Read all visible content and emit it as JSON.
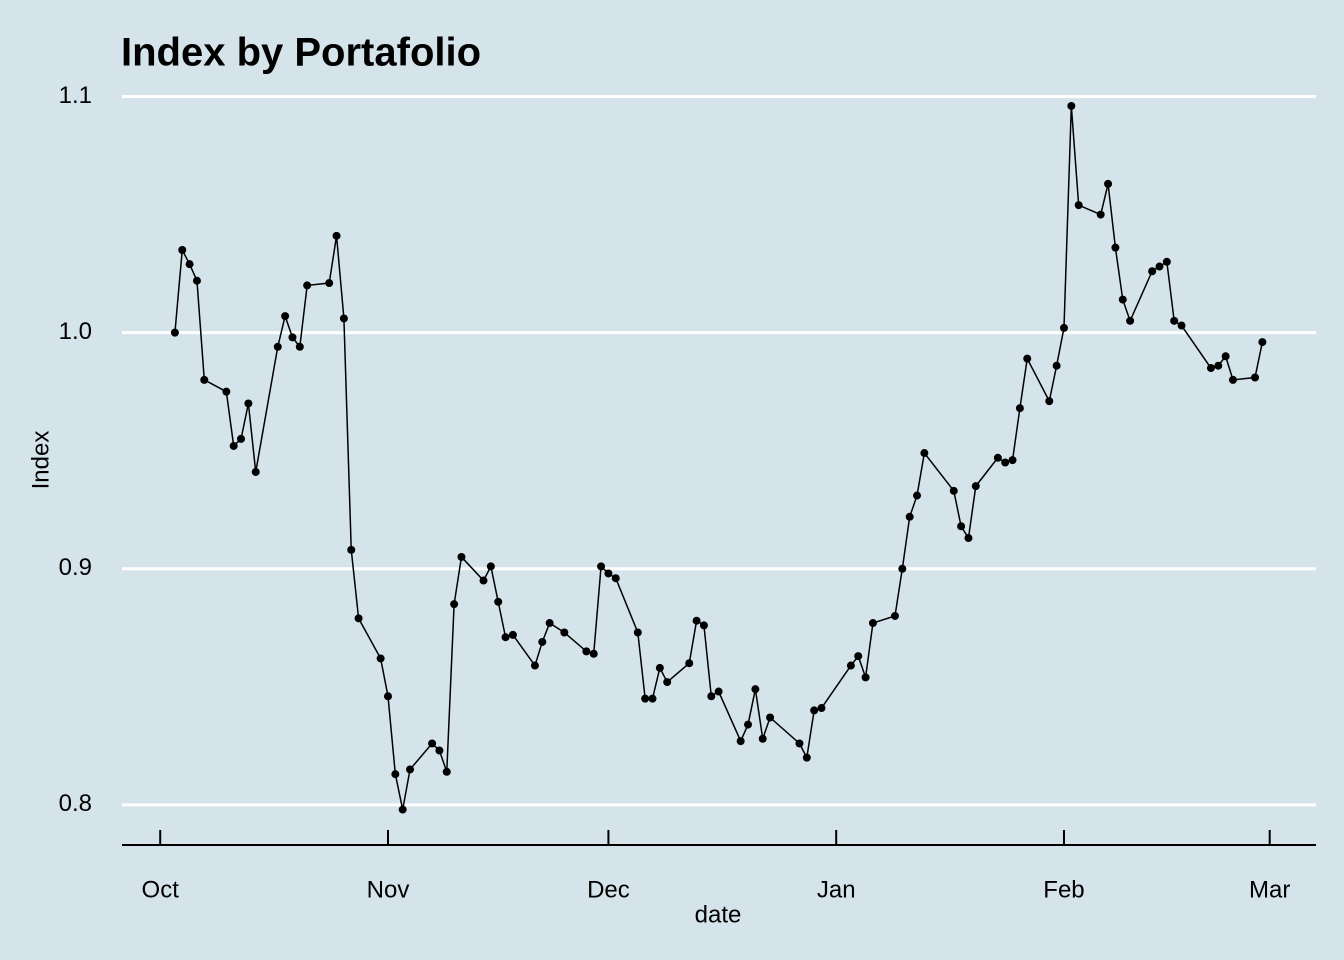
{
  "chart_data": {
    "type": "line",
    "title": "Index by Portafolio",
    "xlabel": "date",
    "ylabel": "Index",
    "x": [
      2,
      3,
      4,
      5,
      6,
      9,
      10,
      11,
      12,
      13,
      16,
      17,
      18,
      19,
      20,
      23,
      24,
      25,
      26,
      27,
      30,
      31,
      32,
      33,
      34,
      37,
      38,
      39,
      40,
      41,
      44,
      45,
      46,
      47,
      48,
      51,
      52,
      53,
      55,
      58,
      59,
      60,
      61,
      62,
      65,
      66,
      67,
      68,
      69,
      72,
      73,
      74,
      75,
      76,
      79,
      80,
      81,
      82,
      83,
      87,
      88,
      89,
      90,
      94,
      95,
      96,
      97,
      100,
      101,
      102,
      103,
      104,
      108,
      109,
      110,
      111,
      114,
      115,
      116,
      117,
      118,
      121,
      122,
      123,
      124,
      125,
      128,
      129,
      130,
      131,
      132,
      135,
      136,
      137,
      138,
      139,
      143,
      144,
      145,
      146,
      149,
      150
    ],
    "series": [
      {
        "name": "Index",
        "color": "#000000",
        "values": [
          1.0,
          1.035,
          1.029,
          1.022,
          0.98,
          0.975,
          0.952,
          0.955,
          0.97,
          0.941,
          0.994,
          1.007,
          0.998,
          0.994,
          1.02,
          1.021,
          1.041,
          1.006,
          0.908,
          0.879,
          0.862,
          0.846,
          0.813,
          0.798,
          0.815,
          0.826,
          0.823,
          0.814,
          0.885,
          0.905,
          0.895,
          0.901,
          0.886,
          0.871,
          0.872,
          0.859,
          0.869,
          0.877,
          0.873,
          0.865,
          0.864,
          0.901,
          0.898,
          0.896,
          0.873,
          0.845,
          0.845,
          0.858,
          0.852,
          0.86,
          0.878,
          0.876,
          0.846,
          0.848,
          0.827,
          0.834,
          0.849,
          0.828,
          0.837,
          0.826,
          0.82,
          0.84,
          0.841,
          0.859,
          0.863,
          0.854,
          0.877,
          0.88,
          0.9,
          0.922,
          0.931,
          0.949,
          0.933,
          0.918,
          0.913,
          0.935,
          0.947,
          0.945,
          0.946,
          0.968,
          0.989,
          0.971,
          0.986,
          1.002,
          1.096,
          1.054,
          1.05,
          1.063,
          1.036,
          1.014,
          1.005,
          1.026,
          1.028,
          1.03,
          1.005,
          1.003,
          0.985,
          0.986,
          0.99,
          0.98,
          0.981,
          0.996
        ]
      }
    ],
    "xlim": [
      -5.2,
      157.3
    ],
    "xticks": [
      {
        "value": 0,
        "label": "Oct"
      },
      {
        "value": 31,
        "label": "Nov"
      },
      {
        "value": 61,
        "label": "Dec"
      },
      {
        "value": 92,
        "label": "Jan"
      },
      {
        "value": 123,
        "label": "Feb"
      },
      {
        "value": 151,
        "label": "Mar"
      }
    ],
    "ylim": [
      0.783,
      1.107
    ],
    "yticks": [
      {
        "value": 0.8,
        "label": "0.8"
      },
      {
        "value": 0.9,
        "label": "0.9"
      },
      {
        "value": 1.0,
        "label": "1.0"
      },
      {
        "value": 1.1,
        "label": "1.1"
      }
    ],
    "grid": true
  }
}
